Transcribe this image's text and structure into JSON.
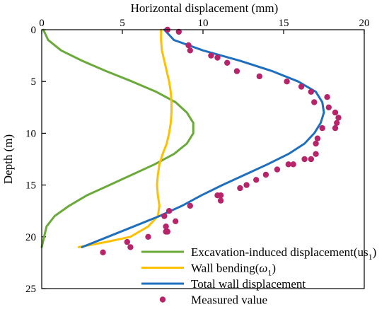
{
  "chart_data": {
    "type": "line",
    "xlabel": "Horizontal displacement (mm)",
    "ylabel": "Depth (m)",
    "x_axis_position": "top",
    "y_axis_inverted": true,
    "xlim": [
      0,
      20
    ],
    "ylim": [
      0,
      25
    ],
    "xticks": [
      "0",
      "5",
      "10",
      "15",
      "20"
    ],
    "yticks": [
      "0",
      "5",
      "10",
      "15",
      "20",
      "25"
    ],
    "grid": false,
    "legend_position": "bottom-right",
    "series": [
      {
        "name": "Excavation-induced displacement(us",
        "name_subscript": "1",
        "name_suffix": ")",
        "kind": "line",
        "color": "#6aaa3a",
        "x": [
          0.1,
          0.4,
          1.2,
          2.5,
          4.0,
          5.6,
          7.1,
          8.3,
          9.0,
          9.4,
          9.4,
          9.0,
          8.2,
          7.0,
          5.6,
          4.2,
          2.8,
          1.7,
          0.8,
          0.3,
          0.0
        ],
        "y": [
          0,
          1,
          2,
          3,
          4,
          5,
          6,
          7,
          8,
          9,
          10,
          11,
          12,
          13,
          14,
          15,
          16,
          17,
          18,
          19,
          21
        ]
      },
      {
        "name": "Wall bending(",
        "name_greek": "ω",
        "name_subscript": "1",
        "name_suffix": ")",
        "kind": "line",
        "color": "#ffc000",
        "x": [
          7.4,
          7.4,
          7.45,
          7.6,
          7.75,
          7.9,
          8.0,
          8.05,
          8.05,
          8.0,
          7.9,
          7.75,
          7.5,
          7.3,
          7.2,
          7.15,
          7.2,
          7.3,
          7.2,
          6.6,
          5.5,
          4.0,
          2.3
        ],
        "y": [
          0,
          1,
          2,
          3,
          4,
          5,
          6,
          7,
          8,
          9,
          10,
          11,
          12,
          13,
          14,
          15,
          16,
          17,
          18,
          19,
          20,
          20.5,
          21
        ]
      },
      {
        "name": "Total wall displacement",
        "kind": "line",
        "color": "#1f6fbf",
        "x": [
          7.6,
          8.2,
          10.0,
          12.3,
          14.3,
          15.9,
          17.0,
          17.4,
          17.5,
          17.3,
          16.9,
          16.3,
          15.3,
          14.0,
          12.6,
          11.2,
          9.9,
          8.7,
          7.3,
          5.7,
          4.1,
          2.5
        ],
        "y": [
          0,
          1,
          2,
          3,
          4,
          5,
          6,
          7,
          8,
          9,
          10,
          11,
          12,
          13,
          14,
          15,
          16,
          17,
          18,
          19,
          20,
          21
        ]
      },
      {
        "name": "Measured value",
        "kind": "scatter",
        "color": "#b8246a",
        "x": [
          7.8,
          8.5,
          9.1,
          9.2,
          10.5,
          10.9,
          11.5,
          12.1,
          13.5,
          15.2,
          16.1,
          16.7,
          16.9,
          17.7,
          17.8,
          18.2,
          18.4,
          18.3,
          18.2,
          17.4,
          17.1,
          17.0,
          17.0,
          16.7,
          16.3,
          15.6,
          15.3,
          14.6,
          13.9,
          13.3,
          12.7,
          12.3,
          11.1,
          11.1,
          10.9,
          9.2,
          7.9,
          7.6,
          8.3,
          7.7,
          7.8,
          7.7,
          6.6,
          5.3,
          5.5,
          3.8
        ],
        "y": [
          0.0,
          0.2,
          1.5,
          2.0,
          2.5,
          2.7,
          3.2,
          4.0,
          4.5,
          5.0,
          5.5,
          6.0,
          7.0,
          6.5,
          7.5,
          8.0,
          8.5,
          9.0,
          9.5,
          9.5,
          10.5,
          11.0,
          12.0,
          12.5,
          12.5,
          13.0,
          13.0,
          13.5,
          14.0,
          14.5,
          15.0,
          15.3,
          16.0,
          16.5,
          16.0,
          17.0,
          17.5,
          18.0,
          18.5,
          19.0,
          19.5,
          19.5,
          20.0,
          20.5,
          21.0,
          21.5
        ]
      }
    ]
  }
}
